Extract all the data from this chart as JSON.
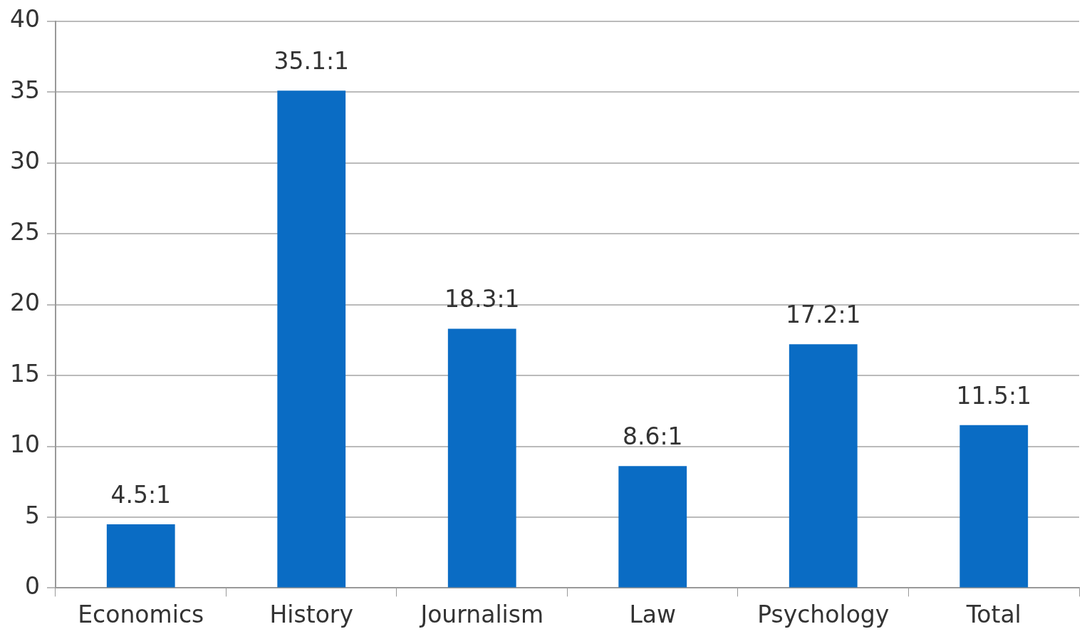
{
  "chart_data": {
    "type": "bar",
    "categories": [
      "Economics",
      "History",
      "Journalism",
      "Law",
      "Psychology",
      "Total"
    ],
    "values": [
      4.5,
      35.1,
      18.3,
      8.6,
      17.2,
      11.5
    ],
    "value_labels": [
      "4.5:1",
      "35.1:1",
      "18.3:1",
      "8.6:1",
      "17.2:1",
      "11.5:1"
    ],
    "color": "#0a6cc4",
    "ylim": [
      0,
      40
    ],
    "yticks": [
      0,
      5,
      10,
      15,
      20,
      25,
      30,
      35,
      40
    ],
    "grid": "y",
    "legend": false
  }
}
